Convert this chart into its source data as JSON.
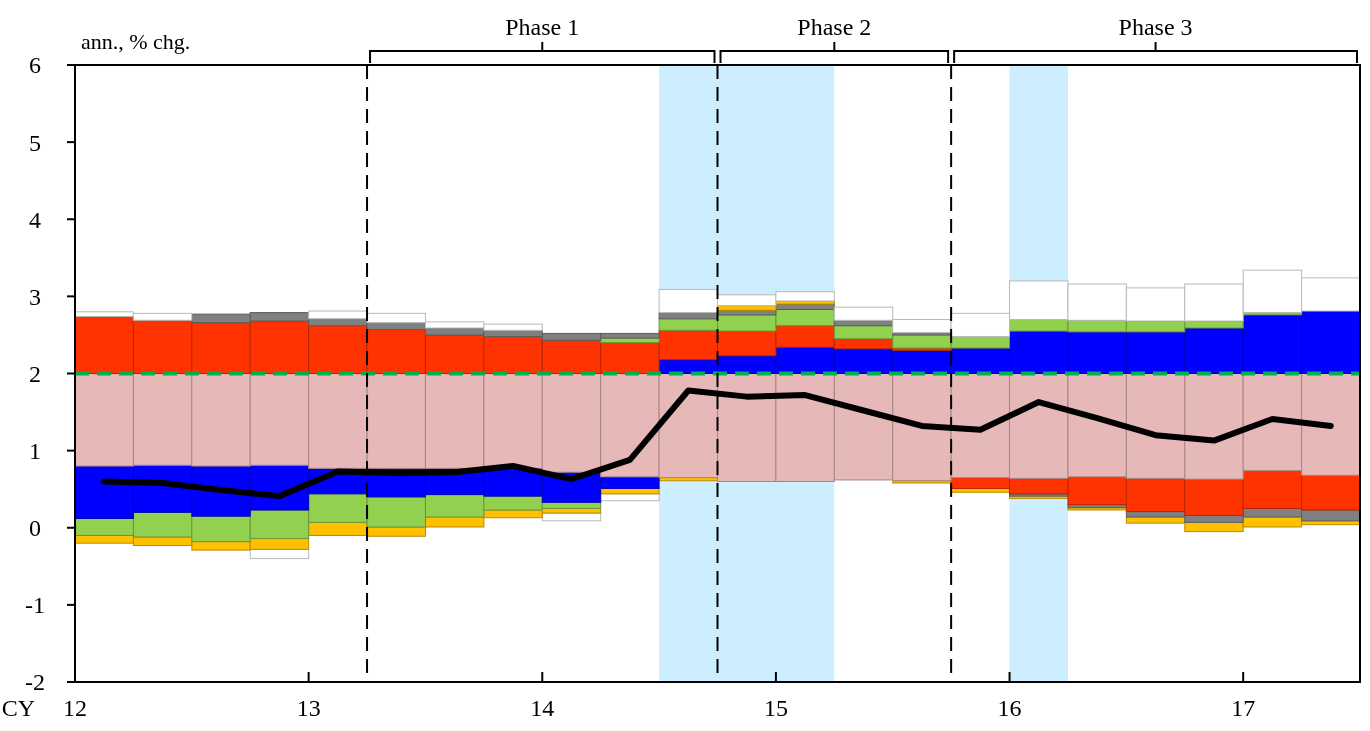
{
  "chart_data": {
    "type": "bar",
    "ylabel": "ann., % chg.",
    "xlabel": "CY",
    "annotations": [
      "Phase 1",
      "Phase 2",
      "Phase 3"
    ],
    "xlim": [
      12,
      17.5
    ],
    "ylim": [
      -2,
      6
    ],
    "xticks": [
      12,
      13,
      14,
      15,
      16,
      17
    ],
    "yticks": [
      -2,
      -1,
      0,
      1,
      2,
      3,
      4,
      5,
      6
    ],
    "x": [
      12.125,
      12.375,
      12.625,
      12.875,
      13.125,
      13.375,
      13.625,
      13.875,
      14.125,
      14.375,
      14.625,
      14.875,
      15.125,
      15.375,
      15.625,
      15.875,
      16.125,
      16.375,
      16.625,
      16.875,
      17.125,
      17.375
    ],
    "series": [
      {
        "color": "#ffffff",
        "base": [
          null,
          null,
          null,
          -0.4,
          null,
          null,
          null,
          null,
          0.09,
          0.35,
          null,
          null,
          null,
          null,
          null,
          null,
          null,
          null,
          null,
          null,
          null,
          null
        ],
        "values": [
          null,
          null,
          null,
          0.12,
          null,
          null,
          null,
          null,
          0.1,
          0.09,
          null,
          null,
          null,
          null,
          null,
          null,
          null,
          null,
          null,
          null,
          null,
          null
        ]
      },
      {
        "color": "#ffc000",
        "base": [
          -0.2,
          -0.23,
          -0.29,
          -0.28,
          -0.1,
          -0.11,
          0.01,
          0.13,
          0.19,
          0.44,
          0.61,
          null,
          null,
          null,
          0.58,
          0.46,
          0.38,
          0.23,
          0.06,
          -0.05,
          0.01,
          0.04
        ],
        "values": [
          0.1,
          0.11,
          0.11,
          0.14,
          0.17,
          0.12,
          0.13,
          0.1,
          0.06,
          0.07,
          0.04,
          null,
          null,
          null,
          0.03,
          0.05,
          0.03,
          0.03,
          0.08,
          0.12,
          0.13,
          0.05
        ]
      },
      {
        "color": "#808080",
        "base": [
          null,
          null,
          null,
          null,
          null,
          null,
          null,
          null,
          null,
          null,
          null,
          null,
          null,
          null,
          null,
          null,
          0.41,
          0.26,
          0.14,
          0.07,
          0.14,
          0.09
        ],
        "values": [
          null,
          null,
          null,
          null,
          null,
          null,
          null,
          null,
          null,
          null,
          null,
          null,
          null,
          null,
          null,
          null,
          0.03,
          0.04,
          0.07,
          0.09,
          0.11,
          0.14
        ]
      },
      {
        "color": "#92d050",
        "base": [
          -0.1,
          -0.12,
          -0.18,
          -0.14,
          0.07,
          0.01,
          0.14,
          0.23,
          0.25,
          null,
          null,
          null,
          null,
          null,
          null,
          null,
          null,
          null,
          null,
          null,
          null,
          null
        ],
        "values": [
          0.22,
          0.32,
          0.33,
          0.37,
          0.37,
          0.39,
          0.29,
          0.18,
          0.08,
          null,
          null,
          null,
          null,
          null,
          null,
          null,
          null,
          null,
          null,
          null,
          null,
          null
        ]
      },
      {
        "color": "#ff3300",
        "base": [
          null,
          null,
          null,
          null,
          null,
          null,
          null,
          null,
          null,
          null,
          null,
          null,
          null,
          null,
          null,
          0.51,
          0.44,
          0.3,
          0.21,
          0.16,
          0.25,
          0.23
        ],
        "values": [
          null,
          null,
          null,
          null,
          null,
          null,
          null,
          null,
          null,
          null,
          null,
          null,
          null,
          null,
          null,
          0.14,
          0.2,
          0.36,
          0.43,
          0.47,
          0.49,
          0.45
        ]
      },
      {
        "color": "#0000ff",
        "base": [
          0.12,
          0.2,
          0.15,
          0.23,
          0.44,
          0.4,
          0.43,
          0.41,
          0.33,
          0.51,
          null,
          null,
          null,
          null,
          null,
          null,
          null,
          null,
          null,
          null,
          null,
          null
        ],
        "values": [
          0.68,
          0.61,
          0.65,
          0.58,
          0.33,
          0.37,
          0.34,
          0.36,
          0.39,
          0.15,
          null,
          null,
          null,
          null,
          null,
          null,
          null,
          null,
          null,
          null,
          null,
          null
        ]
      },
      {
        "color": "#e6b8b7",
        "base": [
          0.8,
          0.81,
          0.8,
          0.81,
          0.77,
          0.77,
          0.77,
          0.77,
          0.72,
          0.66,
          0.65,
          0.6,
          0.6,
          0.62,
          0.61,
          0.65,
          0.64,
          0.66,
          0.64,
          0.63,
          0.74,
          0.68
        ],
        "values": [
          1.2,
          1.19,
          1.2,
          1.19,
          1.23,
          1.23,
          1.23,
          1.23,
          1.28,
          1.34,
          1.35,
          1.4,
          1.4,
          1.38,
          1.39,
          1.35,
          1.36,
          1.34,
          1.36,
          1.37,
          1.26,
          1.32
        ]
      },
      {
        "color": "#0000ff",
        "base": [
          null,
          null,
          null,
          null,
          null,
          null,
          null,
          null,
          null,
          null,
          2,
          2,
          2,
          2,
          2,
          2,
          2,
          2,
          2,
          2,
          2,
          2
        ],
        "values": [
          null,
          null,
          null,
          null,
          null,
          null,
          null,
          null,
          null,
          null,
          0.18,
          0.23,
          0.34,
          0.32,
          0.3,
          0.33,
          0.55,
          0.54,
          0.54,
          0.59,
          0.76,
          0.81
        ]
      },
      {
        "color": "#ff3300",
        "base": [
          2,
          2,
          2,
          2,
          2,
          2,
          2,
          2,
          2,
          2,
          2.18,
          2.23,
          2.34,
          2.32,
          2.3,
          null,
          null,
          null,
          null,
          null,
          null,
          null
        ],
        "values": [
          0.74,
          0.69,
          0.66,
          0.68,
          0.62,
          0.57,
          0.5,
          0.48,
          0.43,
          0.4,
          0.38,
          0.32,
          0.28,
          0.13,
          0.03,
          null,
          null,
          null,
          null,
          null,
          null,
          null
        ]
      },
      {
        "color": "#92d050",
        "base": [
          null,
          null,
          null,
          null,
          null,
          null,
          null,
          null,
          null,
          2.4,
          2.56,
          2.55,
          2.62,
          2.45,
          2.33,
          2.33,
          2.55,
          2.54,
          2.54,
          2.59,
          2.76,
          null
        ],
        "values": [
          null,
          null,
          null,
          null,
          null,
          null,
          null,
          null,
          null,
          0.06,
          0.15,
          0.21,
          0.21,
          0.17,
          0.17,
          0.15,
          0.15,
          0.15,
          0.14,
          0.09,
          0.03,
          null
        ]
      },
      {
        "color": "#808080",
        "base": [
          null,
          null,
          2.66,
          2.68,
          2.62,
          2.57,
          2.5,
          2.48,
          2.43,
          2.46,
          2.71,
          2.76,
          2.83,
          2.62,
          2.5,
          null,
          null,
          null,
          null,
          null,
          null,
          null
        ],
        "values": [
          null,
          null,
          0.11,
          0.11,
          0.09,
          0.09,
          0.09,
          0.08,
          0.09,
          0.06,
          0.08,
          0.06,
          0.07,
          0.07,
          0.03,
          null,
          null,
          null,
          null,
          null,
          null,
          null
        ]
      },
      {
        "color": "#ffc000",
        "base": [
          null,
          null,
          null,
          null,
          null,
          null,
          null,
          null,
          null,
          null,
          null,
          2.82,
          2.9,
          null,
          null,
          null,
          null,
          null,
          null,
          null,
          null,
          null
        ],
        "values": [
          null,
          null,
          null,
          null,
          null,
          null,
          null,
          null,
          null,
          null,
          null,
          0.06,
          0.04,
          null,
          null,
          null,
          null,
          null,
          null,
          null,
          null,
          null
        ]
      },
      {
        "color": "#ffffff",
        "base": [
          2.74,
          2.69,
          null,
          null,
          2.71,
          2.66,
          2.59,
          2.56,
          null,
          null,
          2.79,
          2.88,
          2.94,
          2.69,
          2.53,
          2.48,
          2.7,
          2.69,
          2.68,
          2.68,
          2.79,
          2.81
        ],
        "values": [
          0.06,
          0.09,
          null,
          null,
          0.1,
          0.12,
          0.08,
          0.08,
          null,
          null,
          0.3,
          0.14,
          0.12,
          0.17,
          0.17,
          0.3,
          0.5,
          0.47,
          0.43,
          0.48,
          0.55,
          0.43
        ]
      },
      {
        "type": "line",
        "color": "#000000",
        "values": [
          0.6,
          0.58,
          0.49,
          0.41,
          0.73,
          0.71,
          0.72,
          0.8,
          0.63,
          0.88,
          1.78,
          1.7,
          1.72,
          1.52,
          1.32,
          1.27,
          1.63,
          1.42,
          1.2,
          1.13,
          1.41,
          1.32
        ]
      }
    ],
    "bands": [
      {
        "axis": "x",
        "from": 14.5,
        "to": 15.25,
        "color": "#cceeff"
      },
      {
        "axis": "x",
        "from": 16,
        "to": 16.25,
        "color": "#cceeff"
      }
    ],
    "ref_lines": [
      {
        "axis": "x",
        "value": 13.25,
        "color": "#000000",
        "line_style": "dashed"
      },
      {
        "axis": "x",
        "value": 14.75,
        "color": "#000000",
        "line_style": "dashed"
      },
      {
        "axis": "x",
        "value": 15.75,
        "color": "#000000",
        "line_style": "dashed"
      },
      {
        "axis": "y",
        "value": 2,
        "color": "#00b050",
        "line_style": "dashed"
      }
    ]
  }
}
